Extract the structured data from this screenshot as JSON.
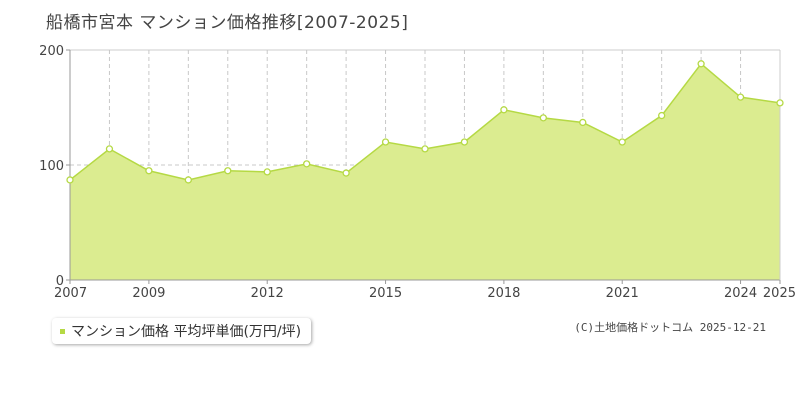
{
  "title": "船橋市宮本 マンション価格推移[2007-2025]",
  "legend": {
    "label": "マンション価格 平均坪単価(万円/坪)"
  },
  "copyright": "(C)土地価格ドットコム 2025-12-21",
  "colors": {
    "line": "#b5d944",
    "fill": "#dbec90",
    "point_fill": "#ffffff",
    "grid_dash": "#c8c8c8",
    "axis": "#999999",
    "grid_solid": "#cccccc",
    "marker": "#b5d944"
  },
  "chart_data": {
    "type": "area",
    "title": "船橋市宮本 マンション価格推移[2007-2025]",
    "xlabel": "",
    "ylabel": "",
    "xlim": [
      2007,
      2025
    ],
    "ylim": [
      0,
      200
    ],
    "yticks": [
      0,
      100,
      200
    ],
    "xticks": [
      2007,
      2009,
      2012,
      2015,
      2018,
      2021,
      2024,
      2025
    ],
    "grid": true,
    "legend_position": "bottom-left",
    "series": [
      {
        "name": "マンション価格 平均坪単価(万円/坪)",
        "x": [
          2007,
          2008,
          2009,
          2010,
          2011,
          2012,
          2013,
          2014,
          2015,
          2016,
          2017,
          2018,
          2019,
          2020,
          2021,
          2022,
          2023,
          2024,
          2025
        ],
        "values": [
          87,
          114,
          95,
          87,
          95,
          94,
          101,
          93,
          120,
          114,
          120,
          148,
          141,
          137,
          120,
          143,
          188,
          159,
          154
        ]
      }
    ]
  }
}
